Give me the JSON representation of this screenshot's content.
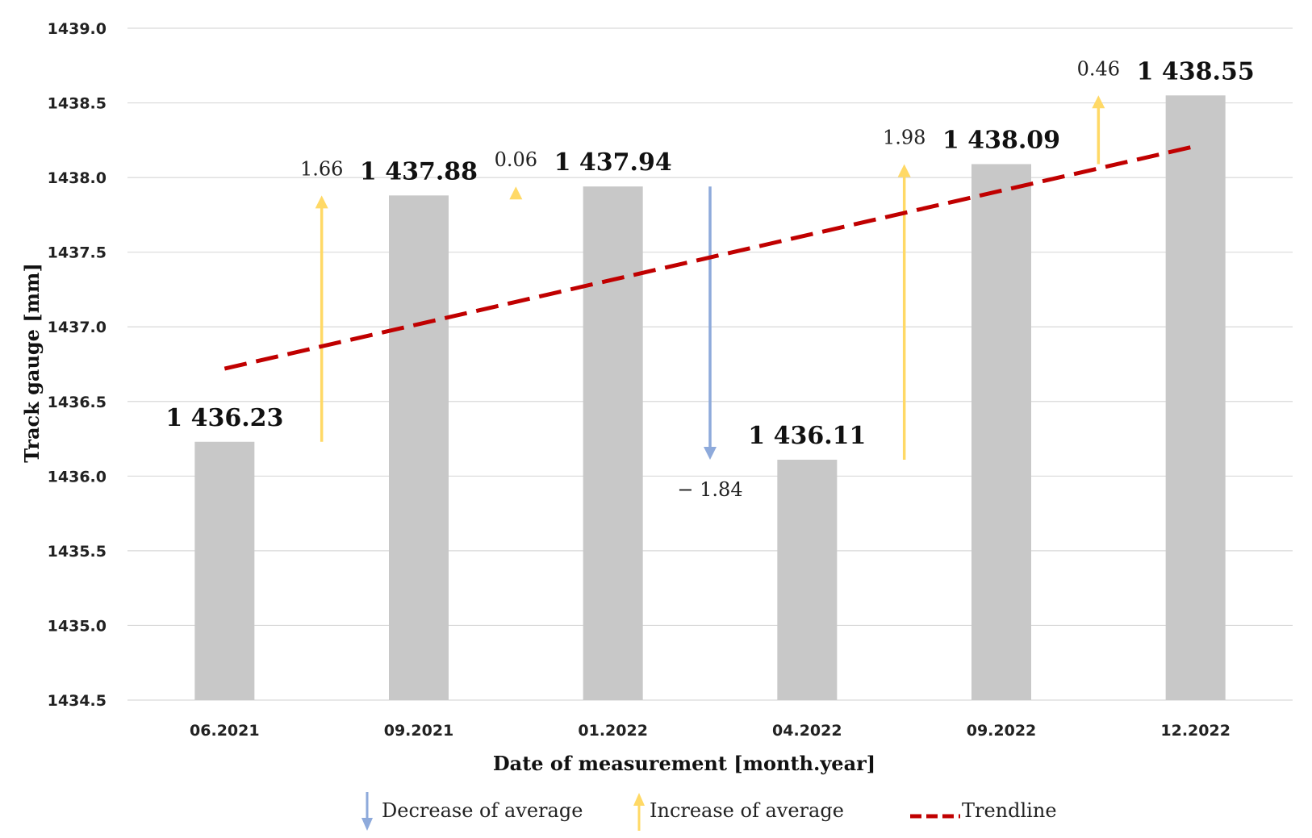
{
  "chart_data": {
    "type": "bar",
    "categories": [
      "06.2021",
      "09.2021",
      "01.2022",
      "04.2022",
      "09.2022",
      "12.2022"
    ],
    "values": [
      1436.23,
      1437.88,
      1437.94,
      1436.11,
      1438.09,
      1438.55
    ],
    "value_labels": [
      "1 436.23",
      "1 437.88",
      "1 437.94",
      "1 436.11",
      "1 438.09",
      "1 438.55"
    ],
    "ylim": [
      1434.5,
      1439.0
    ],
    "yticks": [
      "1434.5",
      "1435.0",
      "1435.5",
      "1436.0",
      "1436.5",
      "1437.0",
      "1437.5",
      "1438.0",
      "1438.5",
      "1439.0"
    ],
    "xlabel": "Date of measurement [month.year]",
    "ylabel": "Track gauge [mm]",
    "grid": true,
    "bar_color": "#c8c8c8",
    "changes": [
      {
        "from": 1436.23,
        "to": 1437.88,
        "label": "1.66",
        "direction": "increase"
      },
      {
        "from": 1437.88,
        "to": 1437.94,
        "label": "0.06",
        "direction": "increase"
      },
      {
        "from": 1437.94,
        "to": 1436.11,
        "label": "− 1.84",
        "direction": "decrease"
      },
      {
        "from": 1436.11,
        "to": 1438.09,
        "label": "1.98",
        "direction": "increase"
      },
      {
        "from": 1438.09,
        "to": 1438.55,
        "label": "0.46",
        "direction": "increase"
      }
    ],
    "trendline": {
      "start": 1436.72,
      "end": 1438.21,
      "color": "#c00000",
      "label": "Trendline"
    },
    "increase_color": "#ffc000",
    "decrease_color": "#4472c4",
    "legend": {
      "position": "bottom",
      "decrease_label": "Decrease of average",
      "increase_label": "Increase of average",
      "trend_label": "Trendline"
    }
  }
}
